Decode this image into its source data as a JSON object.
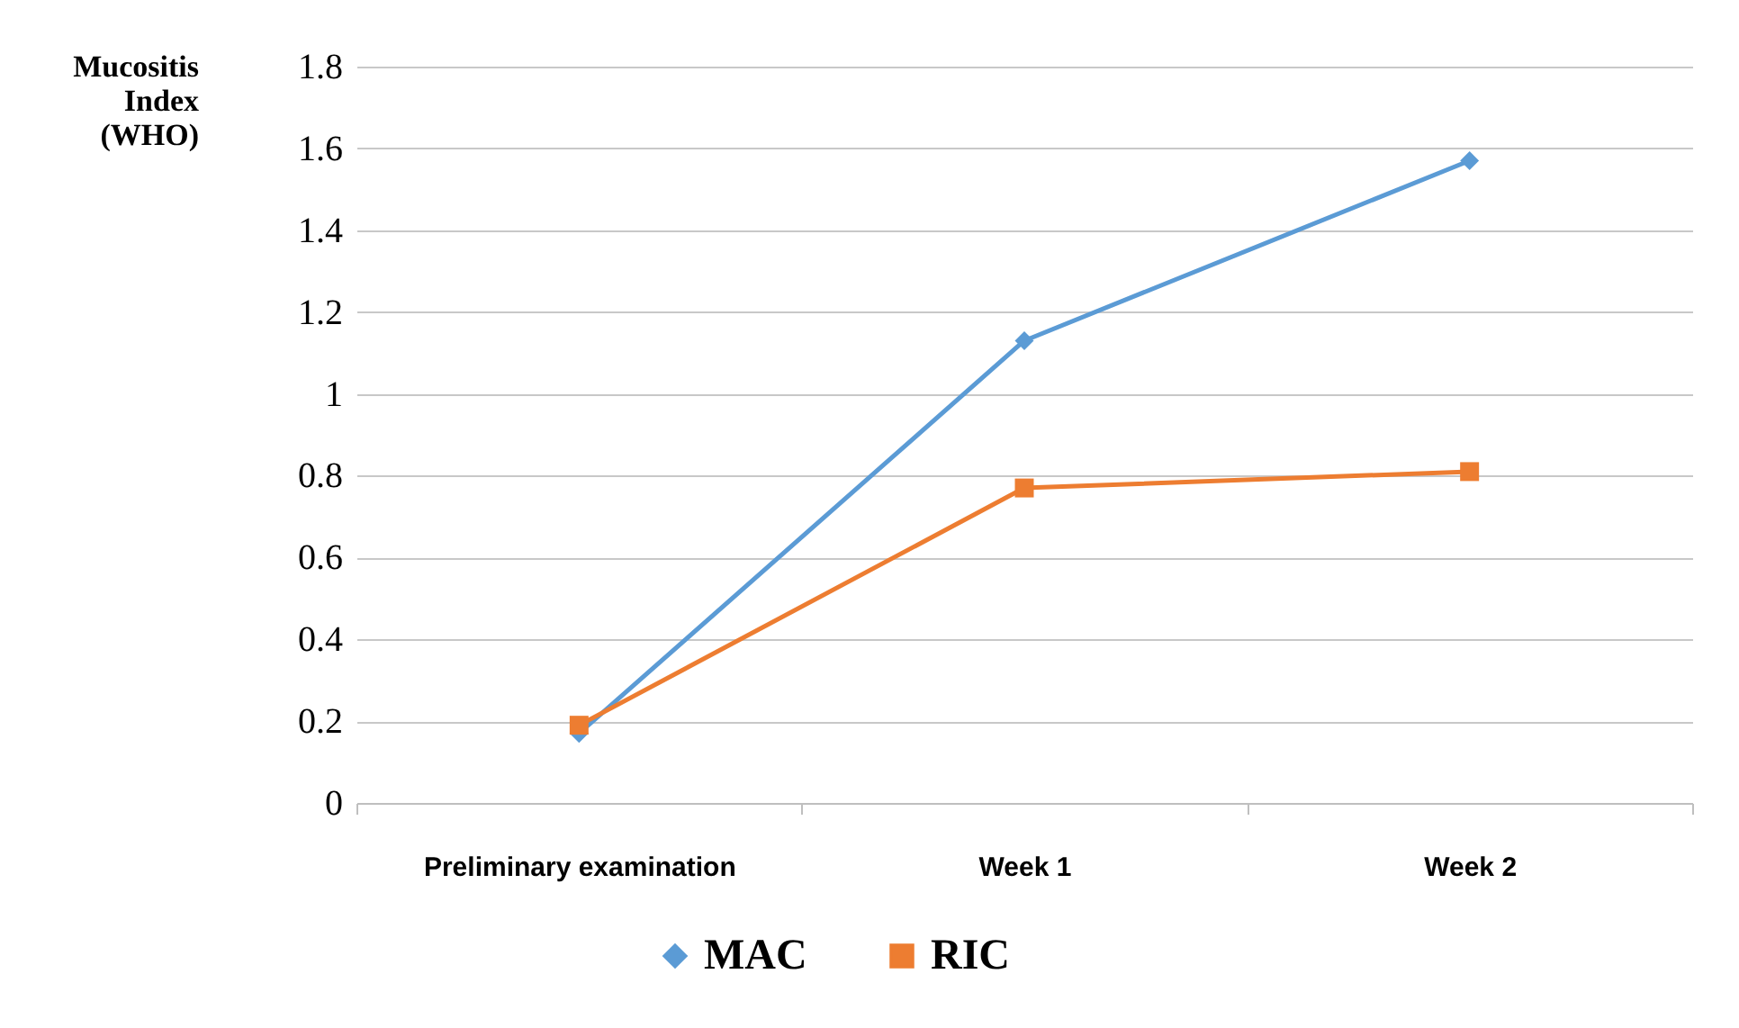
{
  "chart_data": {
    "type": "line",
    "ylabel": "Mucositis Index (WHO)",
    "categories": [
      "Preliminary examination",
      "Week 1",
      "Week 2"
    ],
    "series": [
      {
        "name": "MAC",
        "color": "#5b9bd5",
        "marker": "diamond",
        "values": [
          0.17,
          1.13,
          1.57
        ]
      },
      {
        "name": "RIC",
        "color": "#ed7d31",
        "marker": "square",
        "values": [
          0.19,
          0.77,
          0.81
        ]
      }
    ],
    "ylim": [
      0,
      1.8
    ],
    "yticks": [
      0,
      0.2,
      0.4,
      0.6,
      0.8,
      1,
      1.2,
      1.4,
      1.6,
      1.8
    ],
    "grid": "y",
    "legend": "bottom"
  }
}
